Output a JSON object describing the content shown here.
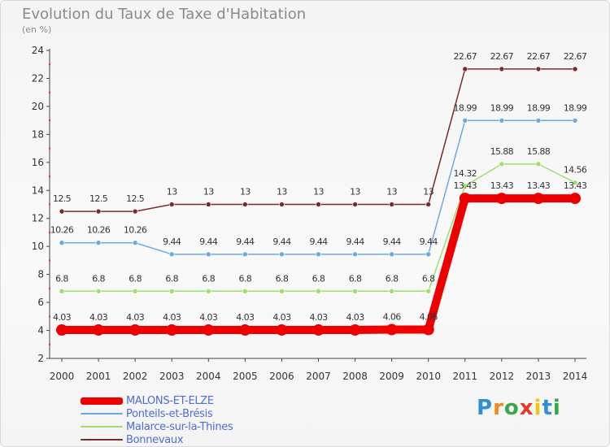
{
  "header": {
    "title": "Evolution du Taux de Taxe d'Habitation",
    "unit": "(en %)"
  },
  "brand": {
    "logo_text": "Proxiti",
    "logo_colors": [
      "#2e8fd6",
      "#f08a1e",
      "#3aa64a",
      "#e23a2f",
      "#f0c419",
      "#2e8fd6",
      "#3aa64a"
    ]
  },
  "chart_data": {
    "type": "line",
    "title": "Evolution du Taux de Taxe d'Habitation",
    "ylabel": "(en %)",
    "xlabel": "",
    "x": [
      "2000",
      "2001",
      "2002",
      "2003",
      "2004",
      "2005",
      "2006",
      "2007",
      "2008",
      "2009",
      "2010",
      "2011",
      "2012",
      "2013",
      "2014"
    ],
    "ylim": [
      2,
      24
    ],
    "yticks": [
      2,
      4,
      6,
      8,
      10,
      12,
      14,
      16,
      18,
      20,
      22,
      24
    ],
    "grid": false,
    "legend_position": "bottom-left",
    "series": [
      {
        "name": "MALONS-ET-ELZE",
        "color": "#ee0000",
        "emphasis": true,
        "values": [
          4.03,
          4.03,
          4.03,
          4.03,
          4.03,
          4.03,
          4.03,
          4.03,
          4.03,
          4.06,
          4.06,
          13.43,
          13.43,
          13.43,
          13.43
        ],
        "labels": [
          "4.03",
          "4.03",
          "4.03",
          "4.03",
          "4.03",
          "4.03",
          "4.03",
          "4.03",
          "4.03",
          "4.06",
          "4.06",
          "13.43",
          "13.43",
          "13.43",
          "13.43"
        ]
      },
      {
        "name": "Ponteils-et-Brésis",
        "color": "#6fa8dc",
        "values": [
          10.26,
          10.26,
          10.26,
          9.44,
          9.44,
          9.44,
          9.44,
          9.44,
          9.44,
          9.44,
          9.44,
          18.99,
          18.99,
          18.99,
          18.99
        ],
        "labels": [
          "10.26",
          "10.26",
          "10.26",
          "9.44",
          "9.44",
          "9.44",
          "9.44",
          "9.44",
          "9.44",
          "9.44",
          "9.44",
          "18.99",
          "18.99",
          "18.99",
          "18.99"
        ]
      },
      {
        "name": "Malarce-sur-la-Thines",
        "color": "#9be06a",
        "values": [
          6.8,
          6.8,
          6.8,
          6.8,
          6.8,
          6.8,
          6.8,
          6.8,
          6.8,
          6.8,
          6.8,
          14.32,
          15.88,
          15.88,
          14.56
        ],
        "labels": [
          "6.8",
          "6.8",
          "6.8",
          "6.8",
          "6.8",
          "6.8",
          "6.8",
          "6.8",
          "6.8",
          "6.8",
          "6.8",
          "14.32",
          "15.88",
          "15.88",
          "14.56"
        ]
      },
      {
        "name": "Bonnevaux",
        "color": "#7a2a2a",
        "values": [
          12.5,
          12.5,
          12.5,
          13,
          13,
          13,
          13,
          13,
          13,
          13,
          13,
          22.67,
          22.67,
          22.67,
          22.67
        ],
        "labels": [
          "12.5",
          "12.5",
          "12.5",
          "13",
          "13",
          "13",
          "13",
          "13",
          "13",
          "13",
          "13",
          "22.67",
          "22.67",
          "22.67",
          "22.67"
        ]
      }
    ]
  }
}
